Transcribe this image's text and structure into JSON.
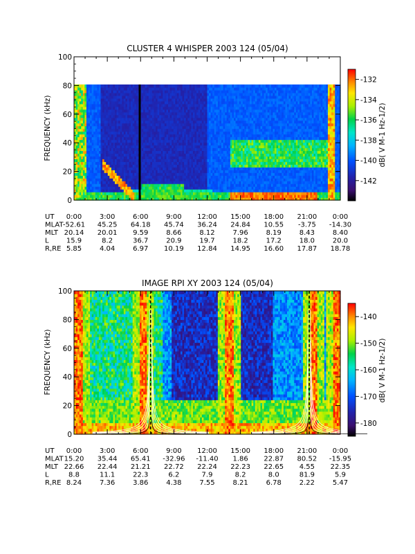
{
  "chart_data": [
    {
      "type": "heatmap",
      "title": "CLUSTER 4 WHISPER 2003 124 (05/04)",
      "ylabel": "FREQUENCY (kHz)",
      "yticks": [
        "0",
        "20",
        "40",
        "60",
        "80",
        "100"
      ],
      "ylim": [
        0,
        100
      ],
      "data_ylim": [
        0,
        80
      ],
      "xticks": [
        "0:00",
        "3:00",
        "6:00",
        "9:00",
        "12:00",
        "15:00",
        "18:00",
        "21:00",
        "0:00"
      ],
      "xlim_hours": [
        0,
        24
      ],
      "colorbar": {
        "label": "dB( V M-1 Hz-1/2)",
        "ticks": [
          "-132",
          "-134",
          "-136",
          "-138",
          "-140",
          "-142"
        ],
        "range": [
          -144,
          -131
        ]
      },
      "ephemeris": {
        "row_labels": [
          "UT",
          "MLAT",
          "MLT",
          "L",
          "R,RE"
        ],
        "rows": [
          [
            "0:00",
            "3:00",
            "6:00",
            "9:00",
            "12:00",
            "15:00",
            "18:00",
            "21:00",
            "0:00"
          ],
          [
            "-52.61",
            "45.25",
            "64.18",
            "45.74",
            "36.24",
            "24.84",
            "10.55",
            "-3.75",
            "-14.30"
          ],
          [
            "20.14",
            "20.01",
            "9.59",
            "8.66",
            "8.12",
            "7.96",
            "8.19",
            "8.43",
            "8.40"
          ],
          [
            "15.9",
            "8.2",
            "36.7",
            "20.9",
            "19.7",
            "18.2",
            "17.2",
            "18.0",
            "20.0"
          ],
          [
            "5.85",
            "4.04",
            "6.97",
            "10.19",
            "12.84",
            "14.95",
            "16.60",
            "17.87",
            "18.78"
          ]
        ]
      }
    },
    {
      "type": "heatmap",
      "title": "IMAGE RPI XY 2003 124 (05/04)",
      "ylabel": "FREQUENCY (kHz)",
      "yticks": [
        "0",
        "20",
        "40",
        "60",
        "80",
        "100"
      ],
      "ylim": [
        0,
        100
      ],
      "xticks": [
        "0:00",
        "3:00",
        "6:00",
        "9:00",
        "12:00",
        "15:00",
        "18:00",
        "21:00",
        "0:00"
      ],
      "xlim_hours": [
        0,
        24
      ],
      "colorbar": {
        "label": "dB( V M-1 Hz-1/2)",
        "ticks": [
          "-140",
          "-150",
          "-160",
          "-170",
          "-180"
        ],
        "range": [
          -185,
          -135
        ]
      },
      "ephemeris": {
        "row_labels": [
          "UT",
          "MLAT",
          "MLT",
          "L",
          "R,RE"
        ],
        "rows": [
          [
            "0:00",
            "3:00",
            "6:00",
            "9:00",
            "12:00",
            "15:00",
            "18:00",
            "21:00",
            "0:00"
          ],
          [
            "15.20",
            "35.44",
            "65.41",
            "-32.96",
            "-11.40",
            "1.86",
            "22.87",
            "80.52",
            "-15.95"
          ],
          [
            "22.66",
            "22.44",
            "21.21",
            "22.72",
            "22.24",
            "22.23",
            "22.65",
            "4.55",
            "22.35"
          ],
          [
            "8.8",
            "11.1",
            "22.3",
            "6.2",
            "7.9",
            "8.2",
            "8.0",
            "81.9",
            "5.9"
          ],
          [
            "8.24",
            "7.36",
            "3.86",
            "4.38",
            "7.55",
            "8.21",
            "6.78",
            "2.22",
            "5.47"
          ]
        ]
      }
    }
  ]
}
